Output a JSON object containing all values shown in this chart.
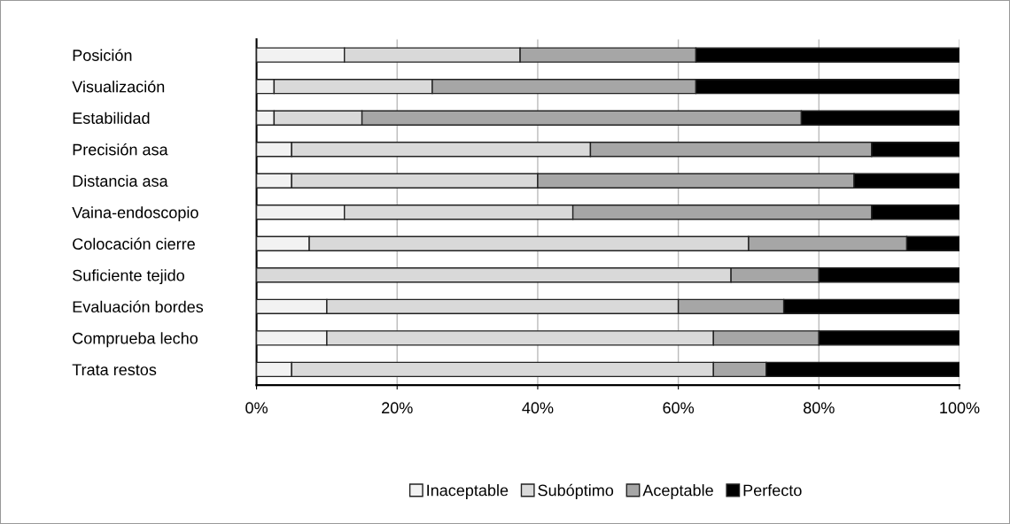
{
  "chart_data": {
    "type": "bar",
    "orientation": "horizontal",
    "stacked": true,
    "categories": [
      "Posición",
      "Visualización",
      "Estabilidad",
      "Precisión asa",
      "Distancia asa",
      "Vaina-endoscopio",
      "Colocación cierre",
      "Suficiente tejido",
      "Evaluación bordes",
      "Comprueba lecho",
      "Trata restos"
    ],
    "series": [
      {
        "name": "Inaceptable",
        "color": "#f2f2f2",
        "values": [
          12.5,
          2.5,
          2.5,
          5,
          5,
          12.5,
          7.5,
          0,
          10,
          10,
          5
        ]
      },
      {
        "name": "Subóptimo",
        "color": "#d9d9d9",
        "values": [
          25,
          22.5,
          12.5,
          42.5,
          35,
          32.5,
          62.5,
          67.5,
          50,
          55,
          60
        ]
      },
      {
        "name": "Aceptable",
        "color": "#a6a6a6",
        "values": [
          25,
          37.5,
          62.5,
          40,
          45,
          42.5,
          22.5,
          12.5,
          15,
          15,
          7.5
        ]
      },
      {
        "name": "Perfecto",
        "color": "#000000",
        "values": [
          37.5,
          37.5,
          22.5,
          12.5,
          15,
          12.5,
          7.5,
          20,
          25,
          20,
          27.5
        ]
      }
    ],
    "xlim": [
      0,
      100
    ],
    "xticks": [
      {
        "value": 0,
        "label": "0%"
      },
      {
        "value": 20,
        "label": "20%"
      },
      {
        "value": 40,
        "label": "40%"
      },
      {
        "value": 60,
        "label": "60%"
      },
      {
        "value": 80,
        "label": "80%"
      },
      {
        "value": 100,
        "label": "100%"
      }
    ],
    "grid": "x",
    "legend": "bottom"
  }
}
